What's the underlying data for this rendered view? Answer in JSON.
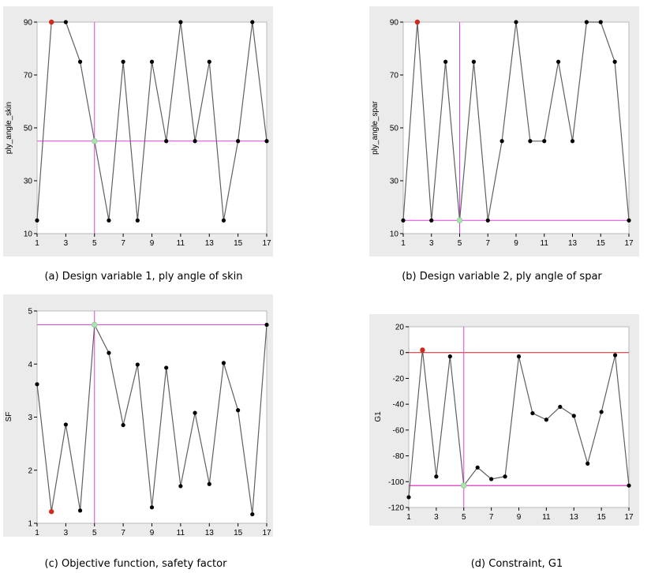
{
  "colors": {
    "panel_bg": "#ebebeb",
    "plot_bg": "#ffffff",
    "line": "#606060",
    "point": "#000000",
    "first_point": "#d02a1e",
    "marker_point": "#a8e4b0",
    "crosshair": "#e040e0",
    "bound": "#cc2020"
  },
  "chart_data": [
    {
      "type": "line",
      "caption": "(a) Design variable 1, ply angle of skin",
      "title": "",
      "xlabel": "",
      "ylabel": "ply_angle_skin",
      "xlim": [
        1,
        17
      ],
      "ylim": [
        10,
        90
      ],
      "xticks": [
        1,
        3,
        5,
        7,
        9,
        11,
        13,
        15,
        17
      ],
      "yticks": [
        10,
        30,
        50,
        70,
        90
      ],
      "x": [
        1,
        2,
        3,
        4,
        5,
        6,
        7,
        8,
        9,
        10,
        11,
        12,
        13,
        14,
        15,
        16,
        17
      ],
      "y": [
        15,
        90,
        90,
        75,
        45,
        15,
        75,
        15,
        75,
        45,
        90,
        45,
        75,
        15,
        45,
        90,
        45
      ],
      "highlight_index": 1,
      "marker": {
        "x": 5,
        "y": 45
      },
      "hlines": []
    },
    {
      "type": "line",
      "caption": "(b) Design variable 2, ply angle of spar",
      "title": "",
      "xlabel": "",
      "ylabel": "ply_angle_spar",
      "xlim": [
        1,
        17
      ],
      "ylim": [
        10,
        90
      ],
      "xticks": [
        1,
        3,
        5,
        7,
        9,
        11,
        13,
        15,
        17
      ],
      "yticks": [
        10,
        30,
        50,
        70,
        90
      ],
      "x": [
        1,
        2,
        3,
        4,
        5,
        6,
        7,
        8,
        9,
        10,
        11,
        12,
        13,
        14,
        15,
        16,
        17
      ],
      "y": [
        15,
        90,
        15,
        75,
        15,
        75,
        15,
        45,
        90,
        45,
        45,
        75,
        45,
        90,
        90,
        75,
        15
      ],
      "highlight_index": 1,
      "marker": {
        "x": 5,
        "y": 15
      },
      "hlines": []
    },
    {
      "type": "line",
      "caption": "(c) Objective function, safety factor",
      "title": "",
      "xlabel": "",
      "ylabel": "SF",
      "xlim": [
        1,
        17
      ],
      "ylim": [
        1,
        5
      ],
      "xticks": [
        1,
        3,
        5,
        7,
        9,
        11,
        13,
        15,
        17
      ],
      "yticks": [
        1,
        2,
        3,
        4,
        5
      ],
      "x": [
        1,
        2,
        3,
        4,
        5,
        6,
        7,
        8,
        9,
        10,
        11,
        12,
        13,
        14,
        15,
        16,
        17
      ],
      "y": [
        3.62,
        1.22,
        2.86,
        1.24,
        4.74,
        4.21,
        2.85,
        3.99,
        1.3,
        3.93,
        1.7,
        3.08,
        1.74,
        4.02,
        3.13,
        1.17,
        4.74
      ],
      "highlight_index": 1,
      "marker": {
        "x": 5,
        "y": 4.74
      },
      "hlines": []
    },
    {
      "type": "line",
      "caption": "(d) Constraint, G1",
      "title": "",
      "xlabel": "",
      "ylabel": "G1",
      "xlim": [
        1,
        17
      ],
      "ylim": [
        -120,
        20
      ],
      "xticks": [
        1,
        3,
        5,
        7,
        9,
        11,
        13,
        15,
        17
      ],
      "yticks": [
        -120,
        -100,
        -80,
        -60,
        -40,
        -20,
        0,
        20
      ],
      "x": [
        1,
        2,
        3,
        4,
        5,
        6,
        7,
        8,
        9,
        10,
        11,
        12,
        13,
        14,
        15,
        16,
        17
      ],
      "y": [
        -112,
        2,
        -96,
        -3,
        -103,
        -89,
        -98,
        -96,
        -3,
        -47,
        -52,
        -42,
        -49,
        -86,
        -46,
        -2,
        -103
      ],
      "highlight_index": 1,
      "marker": {
        "x": 5,
        "y": -103
      },
      "hlines": [
        0,
        -103
      ]
    }
  ]
}
